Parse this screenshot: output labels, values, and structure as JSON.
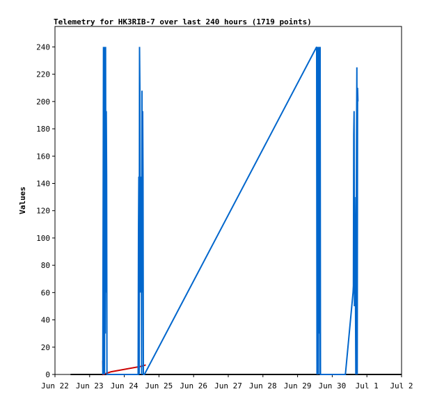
{
  "chart_data": {
    "type": "line",
    "title": "Telemetry for HK3RIB-7 over last 240 hours (1719 points)",
    "ylabel": "Values",
    "xlabel": "",
    "x_ticks": [
      "Jun 22",
      "Jun 23",
      "Jun 24",
      "Jun 25",
      "Jun 26",
      "Jun 27",
      "Jun 28",
      "Jun 29",
      "Jun 30",
      "Jul 1",
      "Jul 2"
    ],
    "xlim_days": [
      22,
      32
    ],
    "y_ticks": [
      0,
      20,
      40,
      60,
      80,
      100,
      120,
      140,
      160,
      180,
      200,
      220,
      240
    ],
    "ylim": [
      0,
      255
    ],
    "grid": false,
    "series": [
      {
        "color": "#000000",
        "points": [
          [
            22.45,
            0
          ],
          [
            32.0,
            0
          ]
        ]
      },
      {
        "color": "#cc0000",
        "points": [
          [
            23.38,
            10
          ],
          [
            23.39,
            0
          ],
          [
            23.62,
            2
          ],
          [
            24.5,
            6
          ],
          [
            24.62,
            7
          ]
        ]
      },
      {
        "color": "#0066cc",
        "points": [
          [
            23.38,
            0
          ],
          [
            23.4,
            240
          ],
          [
            23.41,
            0
          ],
          [
            23.42,
            240
          ],
          [
            23.43,
            0
          ],
          [
            23.44,
            240
          ],
          [
            23.45,
            30
          ],
          [
            23.46,
            240
          ],
          [
            23.47,
            60
          ],
          [
            23.48,
            193
          ],
          [
            23.49,
            145
          ],
          [
            23.5,
            0
          ],
          [
            24.4,
            0
          ],
          [
            24.41,
            105
          ],
          [
            24.42,
            145
          ],
          [
            24.43,
            0
          ],
          [
            24.44,
            240
          ],
          [
            24.45,
            210
          ],
          [
            24.46,
            60
          ],
          [
            24.47,
            145
          ],
          [
            24.48,
            80
          ],
          [
            24.49,
            145
          ],
          [
            24.5,
            0
          ],
          [
            24.51,
            208
          ],
          [
            24.52,
            60
          ],
          [
            24.53,
            193
          ],
          [
            24.54,
            145
          ],
          [
            24.55,
            0
          ],
          [
            24.58,
            0
          ],
          [
            29.55,
            240
          ],
          [
            29.56,
            0
          ],
          [
            29.57,
            240
          ],
          [
            29.58,
            210
          ],
          [
            29.59,
            0
          ],
          [
            29.6,
            240
          ],
          [
            29.61,
            145
          ],
          [
            29.62,
            30
          ],
          [
            29.63,
            240
          ],
          [
            29.64,
            0
          ],
          [
            29.65,
            240
          ],
          [
            29.66,
            0
          ],
          [
            30.38,
            0
          ],
          [
            30.6,
            60
          ],
          [
            30.61,
            65
          ],
          [
            30.62,
            176
          ],
          [
            30.63,
            193
          ],
          [
            30.64,
            50
          ],
          [
            30.65,
            130
          ],
          [
            30.66,
            97
          ],
          [
            30.67,
            55
          ],
          [
            30.68,
            0
          ],
          [
            30.7,
            168
          ],
          [
            30.71,
            225
          ],
          [
            30.72,
            0
          ],
          [
            30.73,
            210
          ],
          [
            30.74,
            200
          ]
        ]
      }
    ]
  }
}
